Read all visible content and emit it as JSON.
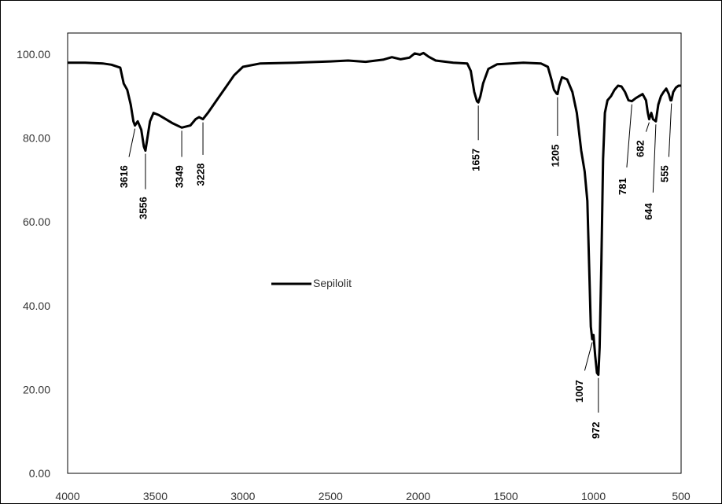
{
  "chart_data": {
    "type": "line",
    "title": "",
    "xlabel": "",
    "ylabel": "",
    "xlim": [
      4000,
      500
    ],
    "ylim": [
      0,
      105
    ],
    "x_ticks": [
      "4000",
      "3500",
      "3000",
      "2500",
      "2000",
      "1500",
      "1000",
      "500"
    ],
    "y_ticks": [
      "0.00",
      "20.00",
      "40.00",
      "60.00",
      "80.00",
      "100.00"
    ],
    "grid": false,
    "legend_position": "center-left",
    "series": [
      {
        "name": "Sepilolit",
        "color": "#000000",
        "points": [
          [
            4000,
            98.0
          ],
          [
            3900,
            98.0
          ],
          [
            3800,
            97.8
          ],
          [
            3750,
            97.5
          ],
          [
            3700,
            96.8
          ],
          [
            3680,
            93.0
          ],
          [
            3660,
            91.5
          ],
          [
            3640,
            88.0
          ],
          [
            3625,
            84.0
          ],
          [
            3616,
            83.0
          ],
          [
            3600,
            84.0
          ],
          [
            3580,
            82.0
          ],
          [
            3565,
            78.0
          ],
          [
            3556,
            77.0
          ],
          [
            3545,
            80.0
          ],
          [
            3530,
            84.0
          ],
          [
            3510,
            86.0
          ],
          [
            3480,
            85.5
          ],
          [
            3440,
            84.5
          ],
          [
            3400,
            83.5
          ],
          [
            3349,
            82.5
          ],
          [
            3300,
            83.0
          ],
          [
            3270,
            84.5
          ],
          [
            3250,
            85.0
          ],
          [
            3228,
            84.5
          ],
          [
            3200,
            86.0
          ],
          [
            3150,
            89.0
          ],
          [
            3100,
            92.0
          ],
          [
            3050,
            95.0
          ],
          [
            3000,
            97.0
          ],
          [
            2900,
            97.8
          ],
          [
            2700,
            98.0
          ],
          [
            2500,
            98.3
          ],
          [
            2400,
            98.5
          ],
          [
            2300,
            98.2
          ],
          [
            2200,
            98.7
          ],
          [
            2150,
            99.3
          ],
          [
            2100,
            98.8
          ],
          [
            2050,
            99.2
          ],
          [
            2020,
            100.2
          ],
          [
            1990,
            99.9
          ],
          [
            1970,
            100.3
          ],
          [
            1940,
            99.4
          ],
          [
            1900,
            98.5
          ],
          [
            1800,
            98.0
          ],
          [
            1720,
            97.8
          ],
          [
            1700,
            96.0
          ],
          [
            1680,
            91.0
          ],
          [
            1665,
            88.8
          ],
          [
            1657,
            88.5
          ],
          [
            1645,
            90.0
          ],
          [
            1630,
            93.0
          ],
          [
            1600,
            96.5
          ],
          [
            1550,
            97.6
          ],
          [
            1400,
            98.0
          ],
          [
            1300,
            97.8
          ],
          [
            1260,
            97.0
          ],
          [
            1240,
            94.0
          ],
          [
            1225,
            91.5
          ],
          [
            1210,
            90.6
          ],
          [
            1205,
            90.5
          ],
          [
            1195,
            92.5
          ],
          [
            1180,
            94.5
          ],
          [
            1150,
            94.0
          ],
          [
            1120,
            91.0
          ],
          [
            1095,
            86.0
          ],
          [
            1070,
            77.0
          ],
          [
            1050,
            72.0
          ],
          [
            1035,
            65.0
          ],
          [
            1025,
            50.0
          ],
          [
            1015,
            35.0
          ],
          [
            1007,
            32.0
          ],
          [
            1000,
            33.0
          ],
          [
            990,
            28.0
          ],
          [
            980,
            24.0
          ],
          [
            972,
            23.5
          ],
          [
            965,
            30.0
          ],
          [
            955,
            50.0
          ],
          [
            945,
            75.0
          ],
          [
            935,
            86.0
          ],
          [
            920,
            89.0
          ],
          [
            900,
            90.0
          ],
          [
            880,
            91.5
          ],
          [
            860,
            92.5
          ],
          [
            840,
            92.3
          ],
          [
            820,
            91.0
          ],
          [
            800,
            89.0
          ],
          [
            781,
            88.8
          ],
          [
            760,
            89.5
          ],
          [
            740,
            90.0
          ],
          [
            720,
            90.5
          ],
          [
            700,
            89.0
          ],
          [
            690,
            86.0
          ],
          [
            682,
            84.5
          ],
          [
            670,
            86.0
          ],
          [
            660,
            84.5
          ],
          [
            644,
            84.0
          ],
          [
            630,
            88.0
          ],
          [
            615,
            90.0
          ],
          [
            600,
            91.0
          ],
          [
            585,
            91.8
          ],
          [
            570,
            90.5
          ],
          [
            560,
            89.0
          ],
          [
            555,
            89.0
          ],
          [
            545,
            91.0
          ],
          [
            530,
            92.0
          ],
          [
            515,
            92.5
          ],
          [
            500,
            92.5
          ]
        ]
      }
    ],
    "annotations": [
      {
        "text": "3616",
        "x": 3616,
        "y": 83.0
      },
      {
        "text": "3556",
        "x": 3556,
        "y": 77.0
      },
      {
        "text": "3349",
        "x": 3349,
        "y": 82.5
      },
      {
        "text": "3228",
        "x": 3228,
        "y": 84.5
      },
      {
        "text": "1657",
        "x": 1657,
        "y": 88.5
      },
      {
        "text": "1205",
        "x": 1205,
        "y": 90.5
      },
      {
        "text": "1007",
        "x": 1007,
        "y": 32.0
      },
      {
        "text": "972",
        "x": 972,
        "y": 23.5
      },
      {
        "text": "781",
        "x": 781,
        "y": 88.8
      },
      {
        "text": "682",
        "x": 682,
        "y": 84.5
      },
      {
        "text": "644",
        "x": 644,
        "y": 84.0
      },
      {
        "text": "555",
        "x": 555,
        "y": 89.0
      }
    ]
  }
}
